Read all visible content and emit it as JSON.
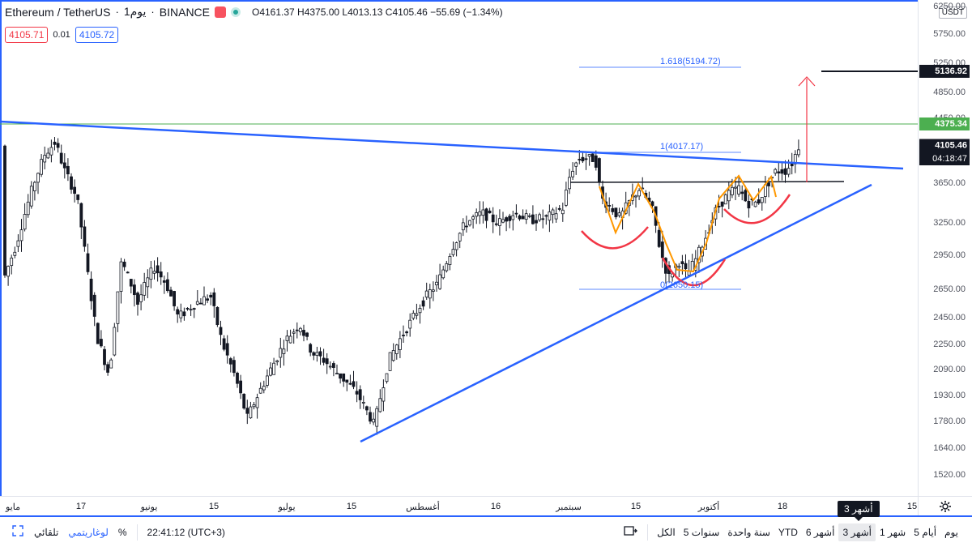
{
  "symbol": {
    "name": "Ethereum / TetherUS",
    "interval": "1يوم",
    "exchange": "BINANCE",
    "ohlc": "O4161.37 H4375.00 L4013.13 C4105.46 −55.69 (−1.34%)",
    "bid": "4105.71",
    "spread": "0.01",
    "ask": "4105.72"
  },
  "price_axis": {
    "currency": "USDT",
    "ticks": [
      "6250.00",
      "5750.00",
      "5250.00",
      "4850.00",
      "4450.00",
      "4105.46",
      "3650.00",
      "3250.00",
      "2950.00",
      "2650.00",
      "2450.00",
      "2250.00",
      "2090.00",
      "1930.00",
      "1780.00",
      "1640.00",
      "1520.00"
    ],
    "target_label": "5136.92",
    "high_label": "4375.34",
    "last_price": "4105.46",
    "countdown": "04:18:47"
  },
  "time_axis": [
    "مايو",
    "17",
    "يونيو",
    "15",
    "يوليو",
    "15",
    "أغسطس",
    "16",
    "سبتمبر",
    "15",
    "أكتوبر",
    "18",
    "15"
  ],
  "fib": {
    "level_1618": "1.618(5194.72)",
    "level_1": "1(4017.17)",
    "level_0": "0(2650.15)"
  },
  "bottom_bar": {
    "ranges": [
      "يوم",
      "5 أيام",
      "1 شهر",
      "3 أشهر",
      "6 أشهر",
      "YTD",
      "سنة واحدة",
      "5 سنوات",
      "الكل"
    ],
    "active_range": "3 أشهر",
    "time": "22:41:12 (UTC+3)",
    "percent": "%",
    "log": "لوغاريتمي",
    "auto": "تلقائي",
    "tooltip": "3 أشهر"
  },
  "colors": {
    "up": "#131722",
    "down": "#131722",
    "trendline": "#2962ff",
    "horizontal_high": "#4caf50",
    "pattern_orange": "#ff9800",
    "pattern_red": "#f23645",
    "target": "#131722"
  },
  "chart_data": {
    "type": "candlestick",
    "series": [
      {
        "name": "Ethereum / TetherUS",
        "trend": "May 2021 to Oct 2021 daily candles; peak ~4375 in May, low ~1700 in July, rally to ~4375 in Oct",
        "key_values": [
          {
            "label": "May high",
            "value": 4375
          },
          {
            "label": "July low",
            "value": 1700
          },
          {
            "label": "Sep high",
            "value": 4017
          },
          {
            "label": "Sep low",
            "value": 2650
          },
          {
            "label": "last close",
            "value": 4105.46
          }
        ]
      }
    ]
  }
}
